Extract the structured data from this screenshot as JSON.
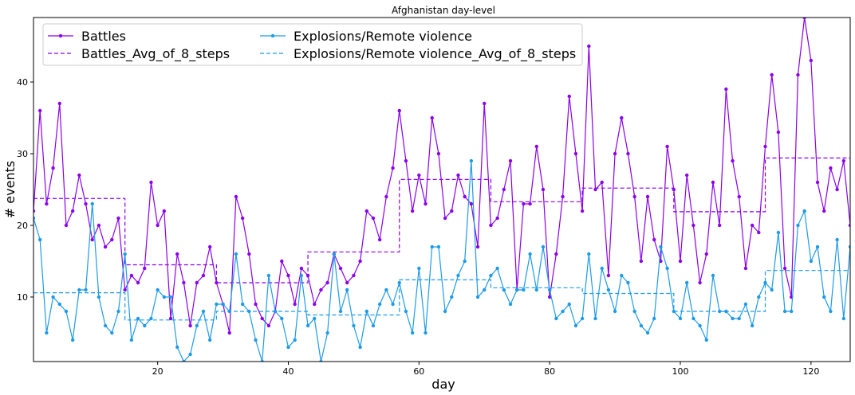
{
  "chart_data": {
    "type": "line",
    "title": "Afghanistan day-level",
    "xlabel": "day",
    "ylabel": "# events",
    "xlim": [
      1,
      126
    ],
    "ylim": [
      1,
      49
    ],
    "xticks": [
      20,
      40,
      60,
      80,
      100,
      120
    ],
    "yticks": [
      10,
      20,
      30,
      40
    ],
    "grid": false,
    "legend_position": "top-left",
    "x": [
      1,
      2,
      3,
      4,
      5,
      6,
      7,
      8,
      9,
      10,
      11,
      12,
      13,
      14,
      15,
      16,
      17,
      18,
      19,
      20,
      21,
      22,
      23,
      24,
      25,
      26,
      27,
      28,
      29,
      30,
      31,
      32,
      33,
      34,
      35,
      36,
      37,
      38,
      39,
      40,
      41,
      42,
      43,
      44,
      45,
      46,
      47,
      48,
      49,
      50,
      51,
      52,
      53,
      54,
      55,
      56,
      57,
      58,
      59,
      60,
      61,
      62,
      63,
      64,
      65,
      66,
      67,
      68,
      69,
      70,
      71,
      72,
      73,
      74,
      75,
      76,
      77,
      78,
      79,
      80,
      81,
      82,
      83,
      84,
      85,
      86,
      87,
      88,
      89,
      90,
      91,
      92,
      93,
      94,
      95,
      96,
      97,
      98,
      99,
      100,
      101,
      102,
      103,
      104,
      105,
      106,
      107,
      108,
      109,
      110,
      111,
      112,
      113,
      114,
      115,
      116,
      117,
      118,
      119,
      120,
      121,
      122,
      123,
      124,
      125,
      126
    ],
    "series": [
      {
        "name": "Battles",
        "color": "#8b00ea",
        "style": "solid-marker",
        "values": [
          22,
          36,
          23,
          28,
          37,
          20,
          22,
          27,
          23,
          18,
          20,
          17,
          18,
          21,
          11,
          13,
          12,
          14,
          26,
          20,
          22,
          7,
          16,
          12,
          6,
          12,
          13,
          17,
          12,
          9,
          5,
          24,
          21,
          16,
          9,
          7,
          6,
          8,
          15,
          13,
          9,
          14,
          13,
          9,
          11,
          12,
          16,
          14,
          12,
          13,
          15,
          22,
          21,
          18,
          24,
          28,
          36,
          29,
          22,
          27,
          23,
          35,
          30,
          21,
          22,
          27,
          24,
          23,
          17,
          37,
          20,
          21,
          25,
          29,
          11,
          23,
          23,
          31,
          25,
          10,
          16,
          24,
          38,
          30,
          22,
          45,
          25,
          26,
          13,
          30,
          35,
          30,
          24,
          15,
          24,
          18,
          15,
          31,
          25,
          15,
          27,
          20,
          12,
          16,
          26,
          20,
          39,
          29,
          24,
          14,
          20,
          19,
          31,
          41,
          33,
          14,
          10,
          41,
          49,
          43,
          26,
          22,
          28,
          25,
          29,
          20
        ]
      },
      {
        "name": "Battles_Avg_of_8_steps",
        "color": "#8b00ea",
        "style": "dashed-step",
        "values": [
          23.75,
          23.75,
          23.75,
          23.75,
          23.75,
          23.75,
          23.75,
          23.75,
          23.75,
          23.75,
          23.75,
          23.75,
          23.75,
          23.75,
          14.5,
          14.5,
          14.5,
          14.5,
          14.5,
          14.5,
          14.5,
          14.5,
          14.5,
          14.5,
          14.5,
          14.5,
          14.5,
          14.5,
          12.0,
          12.0,
          12.0,
          12.0,
          12.0,
          12.0,
          12.0,
          12.0,
          12.0,
          12.0,
          12.0,
          12.0,
          12.0,
          12.0,
          16.3,
          16.3,
          16.3,
          16.3,
          16.3,
          16.3,
          16.3,
          16.3,
          16.3,
          16.3,
          16.3,
          16.3,
          16.3,
          16.3,
          26.4,
          26.4,
          26.4,
          26.4,
          26.4,
          26.4,
          26.4,
          26.4,
          26.4,
          26.4,
          26.4,
          26.4,
          26.4,
          26.4,
          23.3,
          23.3,
          23.3,
          23.3,
          23.3,
          23.3,
          23.3,
          23.3,
          23.3,
          23.3,
          23.3,
          23.3,
          23.3,
          23.3,
          25.2,
          25.2,
          25.2,
          25.2,
          25.2,
          25.2,
          25.2,
          25.2,
          25.2,
          25.2,
          25.2,
          25.2,
          25.2,
          25.2,
          21.9,
          21.9,
          21.9,
          21.9,
          21.9,
          21.9,
          21.9,
          21.9,
          21.9,
          21.9,
          21.9,
          21.9,
          21.9,
          21.9,
          29.4,
          29.4,
          29.4,
          29.4,
          29.4,
          29.4,
          29.4,
          29.4,
          29.4,
          29.4,
          29.4,
          29.4,
          29.4,
          29.4
        ]
      },
      {
        "name": "Explosions/Remote violence",
        "color": "#1e9be8",
        "style": "solid-marker",
        "values": [
          21,
          18,
          5,
          10,
          9,
          8,
          4,
          11,
          11,
          23,
          10,
          6,
          5,
          8,
          16,
          4,
          7,
          6,
          7,
          11,
          10,
          10,
          3,
          1,
          2,
          6,
          8,
          4,
          9,
          9,
          8,
          16,
          9,
          8,
          4,
          1,
          13,
          8,
          7,
          3,
          4,
          13,
          6,
          7,
          1,
          5,
          16,
          8,
          11,
          6,
          3,
          8,
          6,
          9,
          11,
          9,
          12,
          8,
          5,
          14,
          5,
          17,
          17,
          8,
          10,
          13,
          15,
          29,
          10,
          11,
          13,
          14,
          11,
          9,
          11,
          11,
          16,
          11,
          17,
          11,
          7,
          8,
          9,
          6,
          7,
          16,
          7,
          14,
          11,
          8,
          13,
          12,
          8,
          6,
          5,
          7,
          17,
          14,
          8,
          7,
          12,
          7,
          6,
          4,
          13,
          8,
          8,
          7,
          7,
          9,
          6,
          10,
          12,
          11,
          19,
          8,
          8,
          20,
          22,
          15,
          17,
          10,
          8,
          18,
          7,
          17
        ]
      },
      {
        "name": "Explosions/Remote violence_Avg_of_8_steps",
        "color": "#1e9be8",
        "style": "dashed-step",
        "values": [
          10.6,
          10.6,
          10.6,
          10.6,
          10.6,
          10.6,
          10.6,
          10.6,
          10.6,
          10.6,
          10.6,
          10.6,
          10.6,
          10.6,
          6.8,
          6.8,
          6.8,
          6.8,
          6.8,
          6.8,
          6.8,
          6.8,
          6.8,
          6.8,
          6.8,
          6.8,
          6.8,
          6.8,
          8.0,
          8.0,
          8.0,
          8.0,
          8.0,
          8.0,
          8.0,
          8.0,
          8.0,
          8.0,
          8.0,
          8.0,
          8.0,
          8.0,
          7.5,
          7.5,
          7.5,
          7.5,
          7.5,
          7.5,
          7.5,
          7.5,
          7.5,
          7.5,
          7.5,
          7.5,
          7.5,
          7.5,
          12.4,
          12.4,
          12.4,
          12.4,
          12.4,
          12.4,
          12.4,
          12.4,
          12.4,
          12.4,
          12.4,
          12.4,
          12.4,
          12.4,
          11.3,
          11.3,
          11.3,
          11.3,
          11.3,
          11.3,
          11.3,
          11.3,
          11.3,
          11.3,
          11.3,
          11.3,
          11.3,
          11.3,
          10.5,
          10.5,
          10.5,
          10.5,
          10.5,
          10.5,
          10.5,
          10.5,
          10.5,
          10.5,
          10.5,
          10.5,
          10.5,
          10.5,
          8.0,
          8.0,
          8.0,
          8.0,
          8.0,
          8.0,
          8.0,
          8.0,
          8.0,
          8.0,
          8.0,
          8.0,
          8.0,
          8.0,
          13.7,
          13.7,
          13.7,
          13.7,
          13.7,
          13.7,
          13.7,
          13.7,
          13.7,
          13.7,
          13.7,
          13.7,
          13.7,
          13.7
        ]
      }
    ]
  }
}
